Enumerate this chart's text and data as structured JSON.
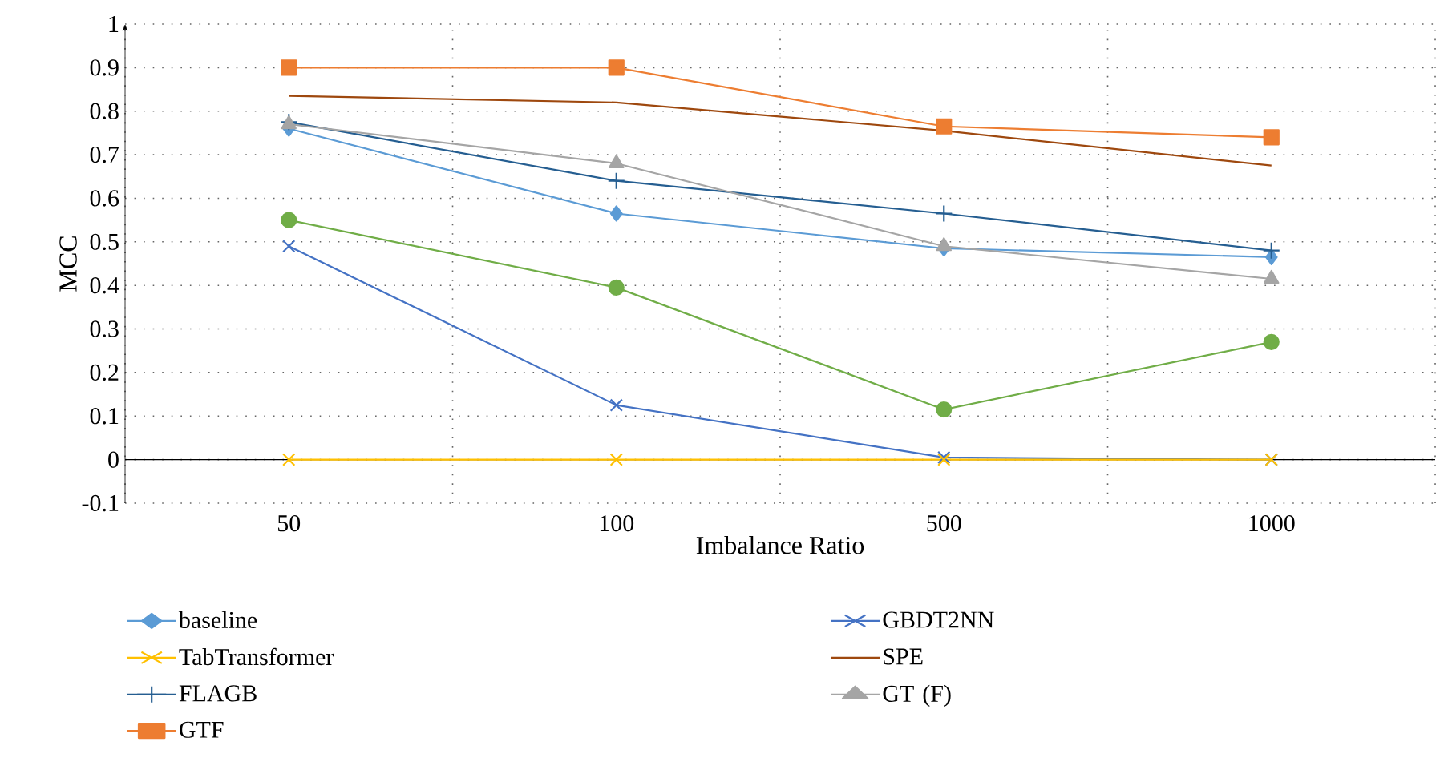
{
  "chart_data": {
    "type": "line",
    "xlabel": "Imbalance Ratio",
    "ylabel": "MCC",
    "categories": [
      "50",
      "100",
      "500",
      "1000"
    ],
    "ylim": [
      -0.1,
      1
    ],
    "yticks": [
      -0.1,
      0,
      0.1,
      0.2,
      0.3,
      0.4,
      0.5,
      0.6,
      0.7,
      0.8,
      0.9,
      1
    ],
    "grid": true,
    "legend": "bottom",
    "series": [
      {
        "name": "baseline",
        "color": "#5b9bd5",
        "marker": "diamond",
        "values": [
          0.76,
          0.565,
          0.485,
          0.465
        ]
      },
      {
        "name": "TabTransformer",
        "color": "#ffc000",
        "marker": "cross",
        "values": [
          0,
          0,
          0,
          0
        ]
      },
      {
        "name": "FLAGB",
        "color": "#255e91",
        "marker": "plus",
        "values": [
          0.775,
          0.64,
          0.565,
          0.48
        ]
      },
      {
        "name": "GTF",
        "color": "#ed7d31",
        "marker": "square",
        "values": [
          0.9,
          0.9,
          0.765,
          0.74
        ]
      },
      {
        "name": "GBDT2NN",
        "color": "#4472c4",
        "marker": "cross",
        "values": [
          0.49,
          0.125,
          0.005,
          0
        ]
      },
      {
        "name": "SPE",
        "color": "#9e480e",
        "marker": "none",
        "values": [
          0.835,
          0.82,
          0.755,
          0.675
        ]
      },
      {
        "name": "GT (F)",
        "color": "#a5a5a5",
        "marker": "triangle",
        "values": [
          0.77,
          0.68,
          0.49,
          0.415
        ]
      },
      {
        "color": "#70ad47",
        "marker": "circle",
        "values": [
          0.55,
          0.395,
          0.115,
          0.27
        ]
      }
    ]
  }
}
